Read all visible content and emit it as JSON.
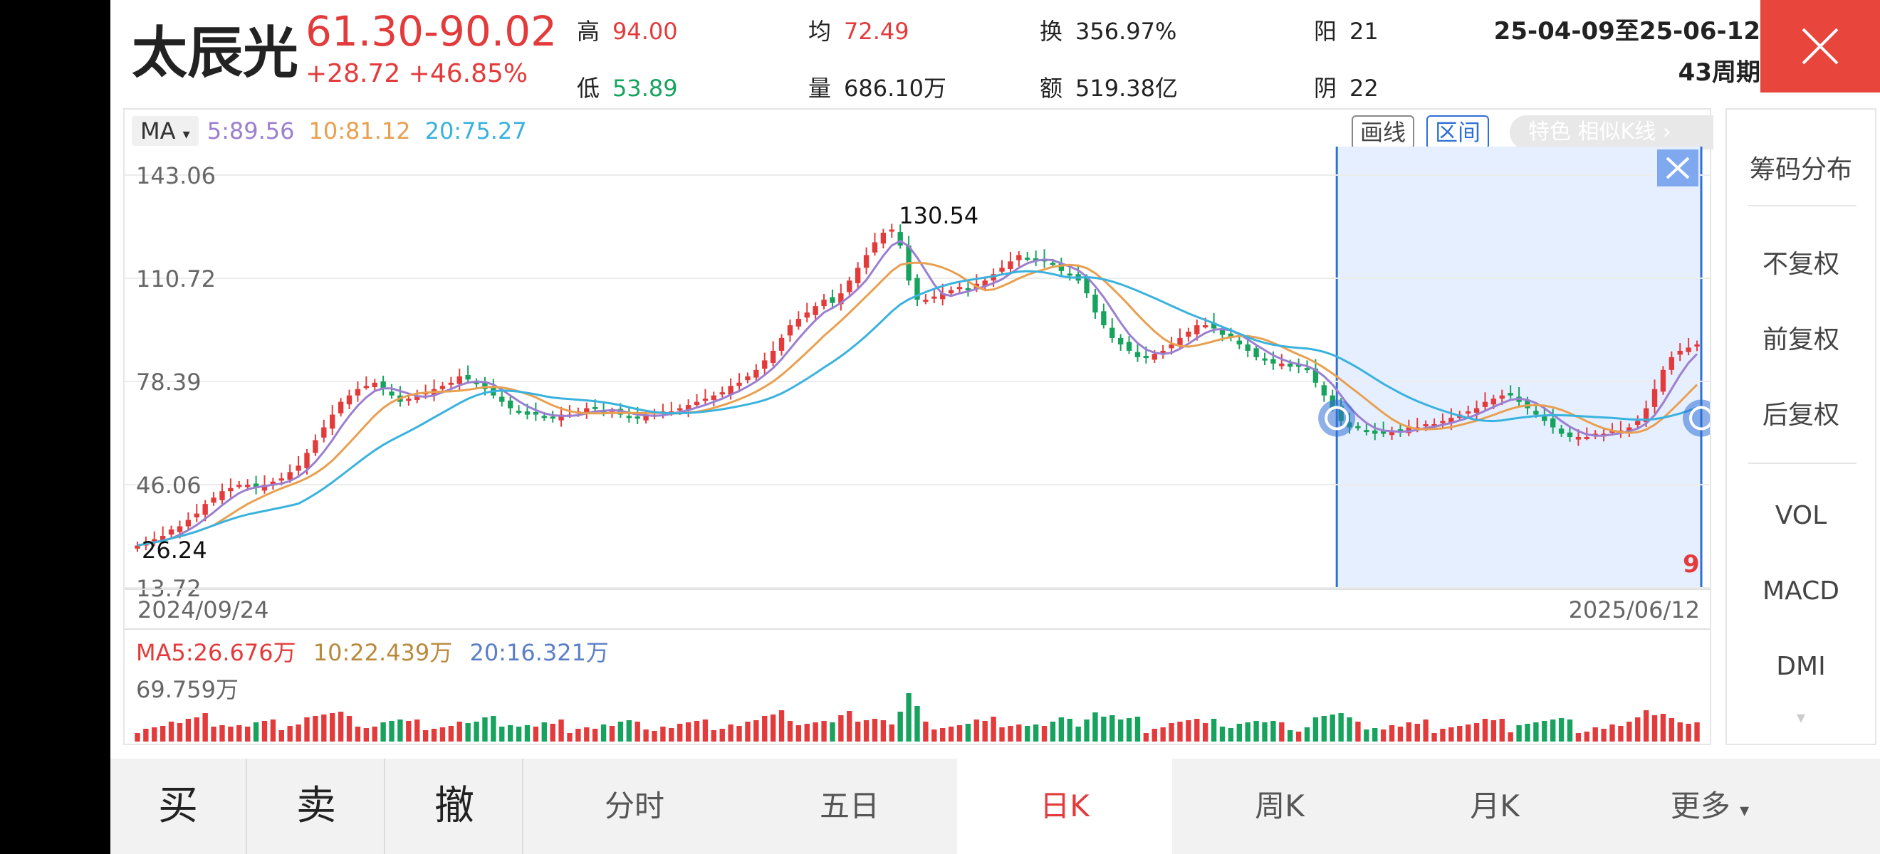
{
  "header": {
    "stock_name": "太辰光",
    "price_range": "61.30-90.02",
    "price_change": "+28.72 +46.85%",
    "stats": {
      "high_label": "高",
      "high_value": "94.00",
      "low_label": "低",
      "low_value": "53.89",
      "avg_label": "均",
      "avg_value": "72.49",
      "volume_label": "量",
      "volume_value": "686.10万",
      "turnover_label": "换",
      "turnover_value": "356.97%",
      "amount_label": "额",
      "amount_value": "519.38亿",
      "up_label": "阳",
      "up_value": "21",
      "down_label": "阴",
      "down_value": "22"
    },
    "date_range": "25-04-09至25-06-12",
    "period_count": "43周期"
  },
  "chart_toolbar": {
    "ma_select": "MA",
    "ma5": "5:89.56",
    "ma10": "10:81.12",
    "ma20": "20:75.27",
    "draw_button": "画线",
    "range_button": "区间",
    "feature_pill": "特色  相似K线 ›"
  },
  "chart_data": {
    "type": "candlestick",
    "y_ticks": [
      "143.06",
      "110.72",
      "78.39",
      "46.06",
      "13.72"
    ],
    "ylim": [
      13.72,
      143.06
    ],
    "x_start_label": "2024/09/24",
    "x_end_label": "2025/06/12",
    "annotations": {
      "max": "130.54",
      "min": "26.24"
    },
    "selected_range_marker": "9",
    "closes": [
      27,
      28,
      29,
      30,
      32,
      33,
      35,
      37,
      40,
      42,
      44,
      45,
      46,
      46,
      45,
      46,
      47,
      48,
      50,
      52,
      56,
      60,
      64,
      68,
      72,
      74,
      76,
      77,
      78,
      76,
      74,
      72,
      73,
      74,
      75,
      76,
      77,
      78,
      80,
      79,
      78,
      76,
      74,
      72,
      70,
      69,
      68,
      68,
      67,
      67,
      68,
      68,
      69,
      70,
      70,
      69,
      69,
      68,
      67,
      67,
      68,
      68,
      69,
      69,
      70,
      71,
      72,
      73,
      74,
      75,
      77,
      78,
      80,
      82,
      85,
      88,
      92,
      96,
      98,
      100,
      102,
      104,
      103,
      106,
      110,
      114,
      118,
      122,
      125,
      126,
      121,
      110,
      104,
      104,
      105,
      106,
      107,
      108,
      107,
      109,
      110,
      112,
      114,
      116,
      118,
      117,
      116,
      116,
      115,
      113,
      112,
      110,
      106,
      100,
      96,
      92,
      90,
      88,
      86,
      86,
      87,
      88,
      90,
      92,
      94,
      96,
      96,
      95,
      93,
      92,
      90,
      88,
      86,
      85,
      84,
      84,
      83,
      83,
      82,
      78,
      74,
      70,
      66,
      64,
      64,
      63,
      62,
      62,
      63,
      63,
      64,
      64,
      65,
      65,
      66,
      67,
      68,
      69,
      70,
      72,
      73,
      74,
      74,
      72,
      70,
      68,
      66,
      64,
      62,
      61,
      61,
      61,
      62,
      62,
      63,
      63,
      64,
      66,
      70,
      76,
      82,
      86,
      88,
      89,
      90
    ],
    "volume_ma": {
      "ma5": "MA5:26.676万",
      "ma10": "10:22.439万",
      "ma20": "20:16.321万",
      "max": "69.759万"
    }
  },
  "right_panel": {
    "chip_distribution": "筹码分布",
    "no_adjust": "不复权",
    "forward_adjust": "前复权",
    "backward_adjust": "后复权",
    "vol": "VOL",
    "macd": "MACD",
    "dmi": "DMI"
  },
  "bottom_bar": {
    "buy": "买",
    "sell": "卖",
    "cancel": "撤",
    "tabs": [
      "分时",
      "五日",
      "日K",
      "周K",
      "月K",
      "更多"
    ],
    "active_tab": "日K"
  },
  "colors": {
    "up": "#e33b3b",
    "down": "#17a35e",
    "selection": "#e6efff",
    "accent": "#2f6fd6"
  }
}
